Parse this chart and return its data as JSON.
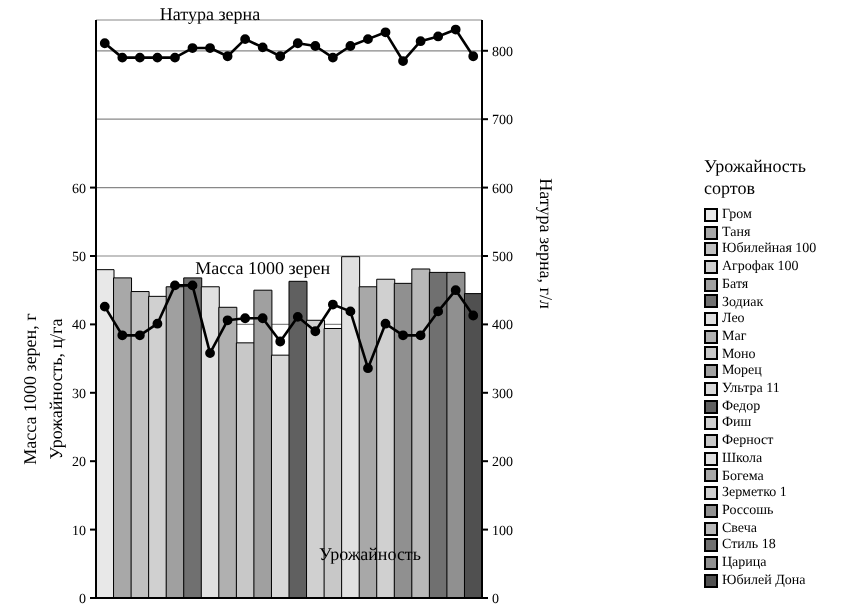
{
  "chart_data": {
    "type": "bar",
    "stacked": true,
    "categories": [
      null,
      null,
      null,
      null,
      null,
      null,
      null,
      null,
      null,
      null,
      null,
      null,
      null,
      null,
      null,
      null,
      null,
      null,
      null,
      null,
      null,
      null
    ],
    "series": [
      {
        "name": "Гром",
        "color": "#e8e8e8",
        "values": [
          48,
          null,
          null,
          null,
          null,
          null,
          null,
          null,
          null,
          null,
          null,
          null,
          null,
          null,
          null,
          null,
          null,
          null,
          null,
          null,
          null,
          null
        ]
      },
      {
        "name": "Таня",
        "color": "#a8a8a8",
        "values": [
          null,
          46.8,
          null,
          null,
          null,
          null,
          null,
          null,
          null,
          null,
          null,
          null,
          null,
          null,
          null,
          null,
          null,
          null,
          null,
          null,
          null,
          null
        ]
      },
      {
        "name": "Юбилейная 100",
        "color": "#c0c0c0",
        "values": [
          null,
          null,
          44.8,
          null,
          null,
          null,
          null,
          null,
          null,
          null,
          null,
          null,
          null,
          null,
          null,
          null,
          null,
          null,
          null,
          null,
          null,
          null
        ]
      },
      {
        "name": "Агрофак 100",
        "color": "#d0d0d0",
        "values": [
          null,
          null,
          null,
          44.1,
          null,
          null,
          null,
          null,
          null,
          null,
          null,
          null,
          null,
          null,
          null,
          null,
          null,
          null,
          null,
          null,
          null,
          null
        ]
      },
      {
        "name": "Батя",
        "color": "#a0a0a0",
        "values": [
          null,
          null,
          null,
          null,
          45.5,
          null,
          null,
          null,
          null,
          null,
          null,
          null,
          null,
          null,
          null,
          null,
          null,
          null,
          null,
          null,
          null,
          null
        ]
      },
      {
        "name": "Зодиак",
        "color": "#707070",
        "values": [
          null,
          null,
          null,
          null,
          null,
          46.8,
          null,
          null,
          null,
          null,
          null,
          null,
          null,
          null,
          null,
          null,
          null,
          null,
          null,
          null,
          null,
          null
        ]
      },
      {
        "name": "Лео",
        "color": "#e0e0e0",
        "values": [
          null,
          null,
          null,
          null,
          null,
          null,
          45.5,
          null,
          null,
          null,
          null,
          null,
          null,
          null,
          null,
          null,
          null,
          null,
          null,
          null,
          null,
          null
        ]
      },
      {
        "name": "Маг",
        "color": "#b0b0b0",
        "values": [
          null,
          null,
          null,
          null,
          null,
          null,
          null,
          42.5,
          null,
          null,
          null,
          null,
          null,
          null,
          null,
          null,
          null,
          null,
          null,
          null,
          null,
          null
        ]
      },
      {
        "name": "Моно",
        "color": "#c8c8c8",
        "values": [
          null,
          null,
          null,
          null,
          null,
          null,
          null,
          null,
          37.3,
          null,
          null,
          null,
          null,
          null,
          null,
          null,
          null,
          null,
          null,
          null,
          null,
          null
        ]
      },
      {
        "name": "Морец",
        "color": "#a0a0a0",
        "values": [
          null,
          null,
          null,
          null,
          null,
          null,
          null,
          null,
          null,
          45,
          null,
          null,
          null,
          null,
          null,
          null,
          null,
          null,
          null,
          null,
          null,
          null
        ]
      },
      {
        "name": "Ультра 11",
        "color": "#d8d8d8",
        "values": [
          null,
          null,
          null,
          null,
          null,
          null,
          null,
          null,
          null,
          null,
          35.5,
          null,
          null,
          null,
          null,
          null,
          null,
          null,
          null,
          null,
          null,
          null
        ]
      },
      {
        "name": "Федор",
        "color": "#606060",
        "values": [
          null,
          null,
          null,
          null,
          null,
          null,
          null,
          null,
          null,
          null,
          null,
          46.3,
          null,
          null,
          null,
          null,
          null,
          null,
          null,
          null,
          null,
          null
        ]
      },
      {
        "name": "Фиш",
        "color": "#d0d0d0",
        "values": [
          null,
          null,
          null,
          null,
          null,
          null,
          null,
          null,
          null,
          null,
          null,
          null,
          40.6,
          null,
          null,
          null,
          null,
          null,
          null,
          null,
          null,
          null
        ]
      },
      {
        "name": "Ферност",
        "color": "#c8c8c8",
        "values": [
          null,
          null,
          null,
          null,
          null,
          null,
          null,
          null,
          null,
          null,
          null,
          null,
          null,
          39.4,
          null,
          null,
          null,
          null,
          null,
          null,
          null,
          null
        ]
      },
      {
        "name": "Школа",
        "color": "#e0e0e0",
        "values": [
          null,
          null,
          null,
          null,
          null,
          null,
          null,
          null,
          null,
          null,
          null,
          null,
          null,
          null,
          49.9,
          null,
          null,
          null,
          null,
          null,
          null,
          null
        ]
      },
      {
        "name": "Богема",
        "color": "#a8a8a8",
        "values": [
          null,
          null,
          null,
          null,
          null,
          null,
          null,
          null,
          null,
          null,
          null,
          null,
          null,
          null,
          null,
          45.5,
          null,
          null,
          null,
          null,
          null,
          null
        ]
      },
      {
        "name": "Зерметко 1",
        "color": "#d0d0d0",
        "values": [
          null,
          null,
          null,
          null,
          null,
          null,
          null,
          null,
          null,
          null,
          null,
          null,
          null,
          null,
          null,
          null,
          46.6,
          null,
          null,
          null,
          null,
          null
        ]
      },
      {
        "name": "Россошь",
        "color": "#909090",
        "values": [
          null,
          null,
          null,
          null,
          null,
          null,
          null,
          null,
          null,
          null,
          null,
          null,
          null,
          null,
          null,
          null,
          null,
          46,
          null,
          null,
          null,
          null
        ]
      },
      {
        "name": "Свеча",
        "color": "#b8b8b8",
        "values": [
          null,
          null,
          null,
          null,
          null,
          null,
          null,
          null,
          null,
          null,
          null,
          null,
          null,
          null,
          null,
          null,
          null,
          null,
          48.1,
          null,
          null,
          null
        ]
      },
      {
        "name": "Стиль 18",
        "color": "#707070",
        "values": [
          null,
          null,
          null,
          null,
          null,
          null,
          null,
          null,
          null,
          null,
          null,
          null,
          null,
          null,
          null,
          null,
          null,
          null,
          null,
          47.6,
          null,
          null
        ]
      },
      {
        "name": "Царица",
        "color": "#909090",
        "values": [
          null,
          null,
          null,
          null,
          null,
          null,
          null,
          null,
          null,
          null,
          null,
          null,
          null,
          null,
          null,
          null,
          null,
          null,
          null,
          null,
          47.6,
          null
        ]
      },
      {
        "name": "Юбилей Дона",
        "color": "#505050",
        "values": [
          null,
          null,
          null,
          null,
          null,
          null,
          null,
          null,
          null,
          null,
          null,
          null,
          null,
          null,
          null,
          null,
          null,
          null,
          null,
          null,
          null,
          44.5
        ]
      },
      {
        "name": "Масса 1000 зерен",
        "type": "line",
        "color": "#000000",
        "values": [
          42.6,
          38.4,
          38.4,
          40.1,
          45.7,
          45.7,
          35.8,
          40.6,
          40.9,
          40.9,
          37.5,
          41.1,
          39,
          42.9,
          41.9,
          33.6,
          40.1,
          38.4,
          38.4,
          41.9,
          45,
          41.3
        ]
      },
      {
        "name": "Натура зерна",
        "type": "line",
        "axis": "y2",
        "color": "#000000",
        "values": [
          811,
          790,
          790,
          790,
          790,
          804,
          804,
          792,
          817,
          805,
          792,
          811,
          807,
          790,
          807,
          817,
          827,
          785,
          814,
          821,
          831,
          792
        ]
      }
    ],
    "ylabel": "Масса 1000 зерен, г\nУрожайность, ц/га",
    "y2label": "Натура зерна, г/л",
    "legend_title": "Урожайность сортов",
    "annotations": [
      "Урожайность"
    ],
    "ylim": [
      0,
      84.5
    ],
    "yticks": [
      0,
      10,
      20,
      30,
      40,
      50,
      60
    ],
    "y2lim": [
      0,
      845
    ],
    "y2ticks": [
      0,
      100,
      200,
      300,
      400,
      500,
      600,
      700,
      800
    ],
    "grid": "y",
    "legend": "right",
    "marker": "circle",
    "line_style": "solid"
  }
}
